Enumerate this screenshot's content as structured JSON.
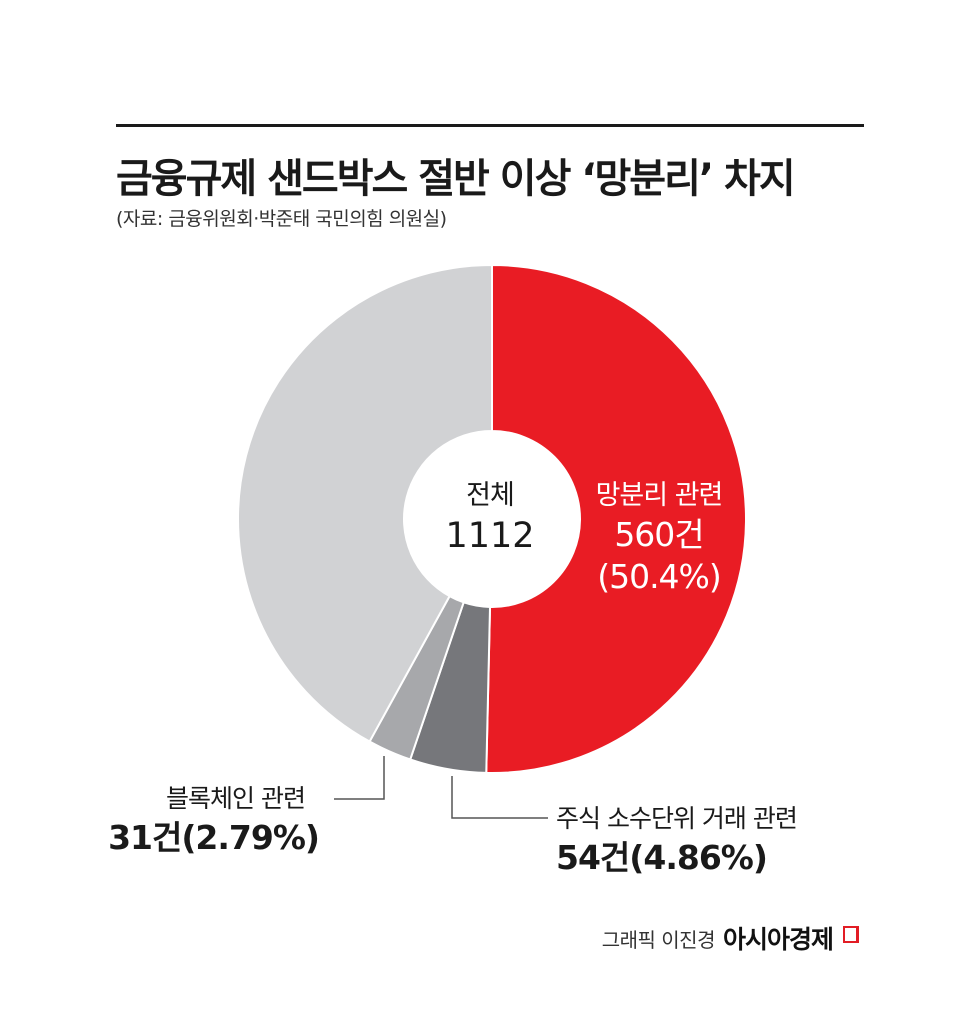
{
  "title": "금융규제 샌드박스 절반 이상 ‘망분리’ 차지",
  "source": "(자료: 금융위원회·박준태 국민의힘 의원실)",
  "colors": {
    "red": "#e91c24",
    "dark_gray": "#76777b",
    "mid_gray": "#a7a8ab",
    "light_gray": "#d1d2d4",
    "line": "#555555"
  },
  "chart_data": {
    "type": "pie",
    "donut": true,
    "total": {
      "label": "전체",
      "value": "1112"
    },
    "slices": [
      {
        "name": "망분리 관련",
        "count": 560,
        "count_label": "560건",
        "percent": 50.4,
        "percent_label": "(50.4%)",
        "color": "#e91c24"
      },
      {
        "name": "주식 소수단위 거래 관련",
        "count": 54,
        "count_label": "54건",
        "percent": 4.86,
        "value_label": "54건(4.86%)",
        "color": "#76777b"
      },
      {
        "name": "블록체인 관련",
        "count": 31,
        "count_label": "31건",
        "percent": 2.79,
        "value_label": "31건(2.79%)",
        "color": "#a7a8ab"
      },
      {
        "name": "",
        "count": 467,
        "percent": 41.95,
        "color": "#d1d2d4"
      }
    ]
  },
  "credit": {
    "text": "그래픽 이진경",
    "logo": "아시아경제"
  }
}
